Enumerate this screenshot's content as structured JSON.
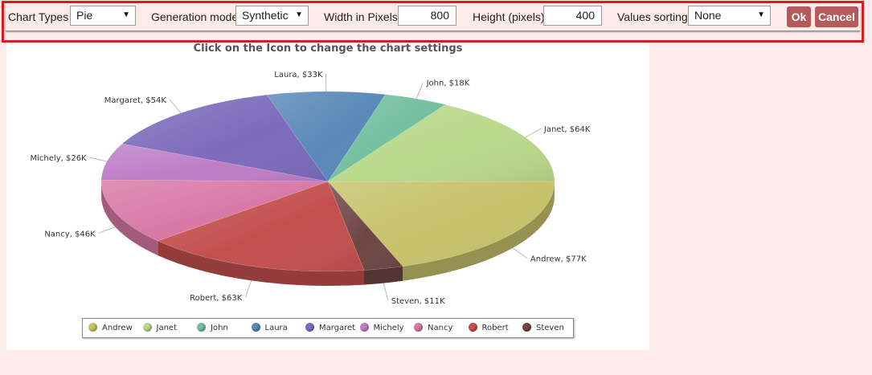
{
  "toolbar": {
    "chart_types_label": "Chart Types",
    "chart_type_value": "Pie",
    "generation_mode_label": "Generation mode",
    "generation_mode_value": "Synthetic",
    "width_label": "Width in Pixels",
    "width_value": "800",
    "height_label": "Height (pixels)",
    "height_value": "400",
    "sorting_label": "Values sorting",
    "sorting_value": "None",
    "ok_label": "Ok",
    "cancel_label": "Cancel"
  },
  "chart_data": {
    "type": "pie",
    "title": "Click on the Icon to change the chart settings",
    "three_d": true,
    "legend_position": "bottom",
    "slices": [
      {
        "name": "Andrew",
        "value": 77,
        "label": "Andrew, $77K",
        "color": "#c6c16a"
      },
      {
        "name": "Steven",
        "value": 11,
        "label": "Steven, $11K",
        "color": "#6e4745"
      },
      {
        "name": "Robert",
        "value": 63,
        "label": "Robert, $63K",
        "color": "#c4504e"
      },
      {
        "name": "Nancy",
        "value": 46,
        "label": "Nancy, $46K",
        "color": "#d879a6"
      },
      {
        "name": "Michely",
        "value": 26,
        "label": "Michely, $26K",
        "color": "#bf7ec7"
      },
      {
        "name": "Margaret",
        "value": 54,
        "label": "Margaret, $54K",
        "color": "#7c6cbc"
      },
      {
        "name": "Laura",
        "value": 33,
        "label": "Laura, $33K",
        "color": "#5a88b8"
      },
      {
        "name": "John",
        "value": 18,
        "label": "John, $18K",
        "color": "#74bfa0"
      },
      {
        "name": "Janet",
        "value": 64,
        "label": "Janet, $64K",
        "color": "#b9d88a"
      }
    ],
    "legend": [
      "Andrew",
      "Janet",
      "John",
      "Laura",
      "Margaret",
      "Michely",
      "Nancy",
      "Robert",
      "Steven"
    ]
  }
}
